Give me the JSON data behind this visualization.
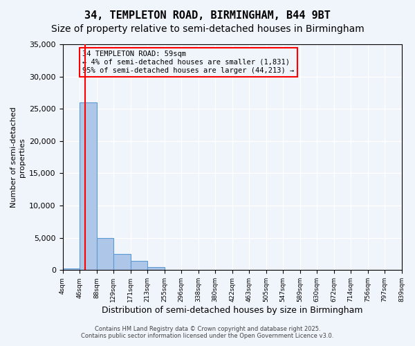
{
  "title": "34, TEMPLETON ROAD, BIRMINGHAM, B44 9BT",
  "subtitle": "Size of property relative to semi-detached houses in Birmingham",
  "xlabel": "Distribution of semi-detached houses by size in Birmingham",
  "ylabel": "Number of semi-detached\nproperties",
  "bins": [
    "4sqm",
    "46sqm",
    "88sqm",
    "129sqm",
    "171sqm",
    "213sqm",
    "255sqm",
    "296sqm",
    "338sqm",
    "380sqm",
    "422sqm",
    "463sqm",
    "505sqm",
    "547sqm",
    "589sqm",
    "630sqm",
    "672sqm",
    "714sqm",
    "756sqm",
    "797sqm",
    "839sqm"
  ],
  "bin_edges": [
    4,
    46,
    88,
    129,
    171,
    213,
    255,
    296,
    338,
    380,
    422,
    463,
    505,
    547,
    589,
    630,
    672,
    714,
    756,
    797,
    839
  ],
  "values": [
    200,
    26000,
    5000,
    2500,
    1400,
    450,
    80,
    10,
    5,
    2,
    1,
    0,
    0,
    0,
    0,
    0,
    0,
    0,
    0,
    0
  ],
  "bar_color": "#aec6e8",
  "bar_edge_color": "#5b9bd5",
  "vline_x": 59,
  "vline_color": "#ff0000",
  "ylim": [
    0,
    35000
  ],
  "yticks": [
    0,
    5000,
    10000,
    15000,
    20000,
    25000,
    30000,
    35000
  ],
  "annotation_text": "34 TEMPLETON ROAD: 59sqm\n← 4% of semi-detached houses are smaller (1,831)\n95% of semi-detached houses are larger (44,213) →",
  "annotation_box_color": "#ff0000",
  "footer_line1": "Contains HM Land Registry data © Crown copyright and database right 2025.",
  "footer_line2": "Contains public sector information licensed under the Open Government Licence v3.0.",
  "background_color": "#f0f4fb",
  "grid_color": "#ffffff",
  "title_fontsize": 11,
  "subtitle_fontsize": 10
}
